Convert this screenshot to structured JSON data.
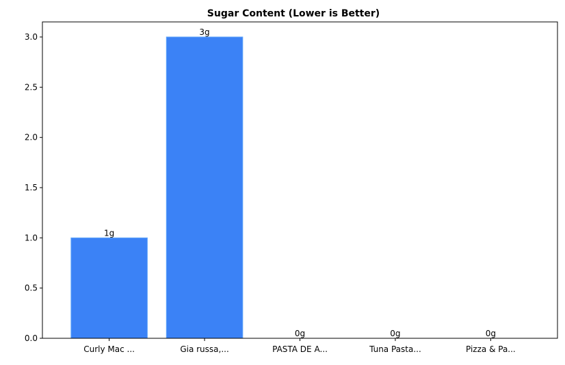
{
  "chart_data": {
    "type": "bar",
    "title": "Sugar Content (Lower is Better)",
    "xlabel": "",
    "ylabel": "",
    "categories": [
      "Curly Mac ...",
      "Gia russa,...",
      "PASTA DE A...",
      "Tuna Pasta...",
      "Pizza & Pa..."
    ],
    "values": [
      1,
      3,
      0,
      0,
      0
    ],
    "data_labels": [
      "1g",
      "3g",
      "0g",
      "0g",
      "0g"
    ],
    "ylim": [
      0,
      3.15
    ],
    "yticks": [
      0.0,
      0.5,
      1.0,
      1.5,
      2.0,
      2.5,
      3.0
    ],
    "ytick_labels": [
      "0.0",
      "0.5",
      "1.0",
      "1.5",
      "2.0",
      "2.5",
      "3.0"
    ],
    "grid": false,
    "bar_color": "#3b82f6",
    "bar_edge_color": "#60a5fa"
  }
}
